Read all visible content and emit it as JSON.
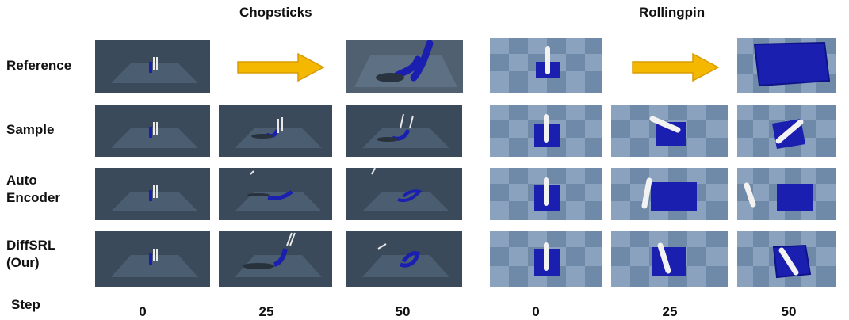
{
  "columns": [
    {
      "title": "Chopsticks",
      "steps": [
        "0",
        "25",
        "50"
      ]
    },
    {
      "title": "Rollingpin",
      "steps": [
        "0",
        "25",
        "50"
      ]
    }
  ],
  "rows": [
    {
      "label": "Reference"
    },
    {
      "label": "Sample"
    },
    {
      "label": "Auto\nEncoder"
    },
    {
      "label": "DiffSRL\n(Our)"
    }
  ],
  "step_label": "Step",
  "colors": {
    "chop_background": "#3a4a5a",
    "roll_background": "#6f8aa8",
    "object_blue": "#1a1fb0",
    "arrow_fill": "#f5b800"
  }
}
